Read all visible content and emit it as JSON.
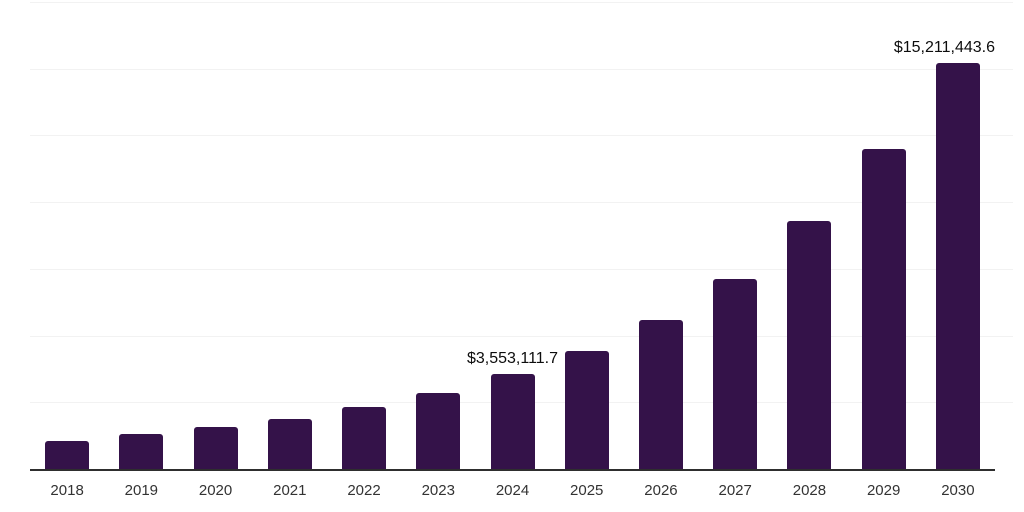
{
  "chart_data": {
    "type": "bar",
    "title": "",
    "xlabel": "",
    "ylabel": "",
    "categories": [
      "2018",
      "2019",
      "2020",
      "2021",
      "2022",
      "2023",
      "2024",
      "2025",
      "2026",
      "2027",
      "2028",
      "2029",
      "2030"
    ],
    "values": [
      1050000,
      1310000,
      1575000,
      1875000,
      2325000,
      2850000,
      3553111.7,
      4420000,
      5585000,
      7120000,
      9290000,
      11990000,
      15211443.6
    ],
    "value_labels": {
      "2024": "$3,553,111.7",
      "2030": "$15,211,443.6"
    },
    "ylim": [
      0,
      17500000
    ],
    "gridline_interval": 2500000,
    "grid": "horizontal",
    "y_tick_labels_shown": false,
    "legend": "none",
    "colors": {
      "bar": "#341249",
      "axis_line": "#2e2e2e",
      "gridline": "#f2f2f2",
      "value_label": "#0d0d0d",
      "tick_label": "#333333",
      "background": "#ffffff"
    }
  }
}
